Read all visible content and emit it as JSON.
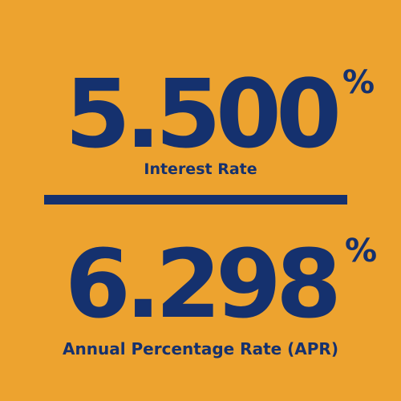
{
  "interest": {
    "value": "5.500",
    "symbol": "%",
    "label": "Interest Rate"
  },
  "apr": {
    "value": "6.298",
    "symbol": "%",
    "label": "Annual Percentage Rate (APR)"
  },
  "colors": {
    "background": "#EDA32F",
    "text": "#15316E",
    "divider": "#15316E"
  }
}
